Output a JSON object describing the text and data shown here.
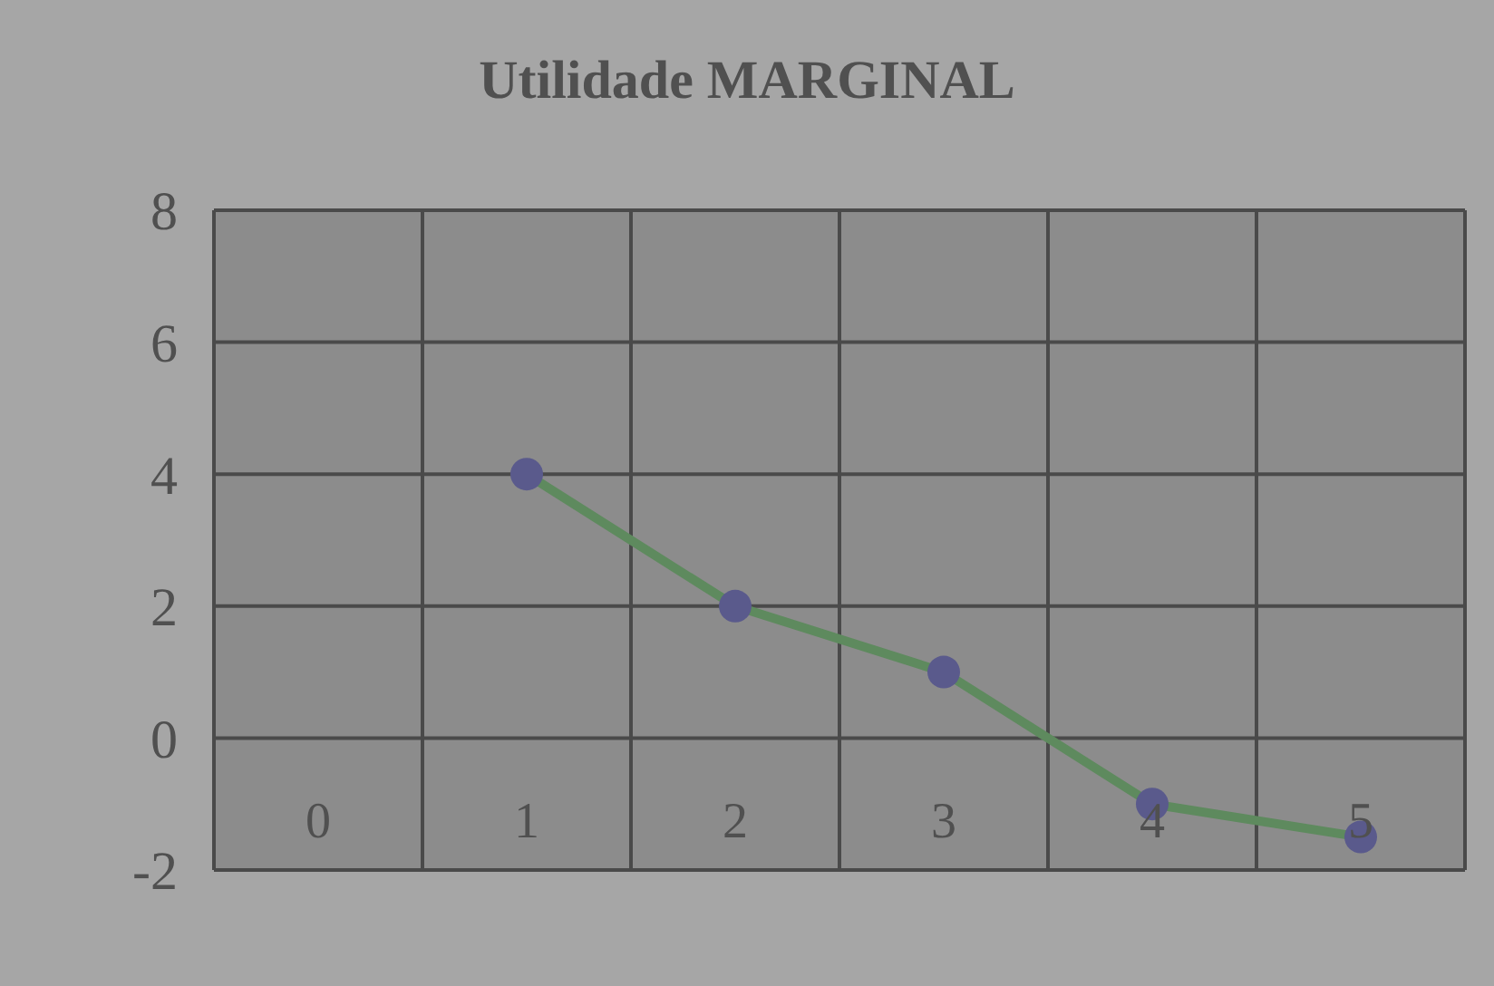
{
  "chart_data": {
    "type": "line",
    "title": "Utilidade MARGINAL",
    "categories": [
      "0",
      "1",
      "2",
      "3",
      "4",
      "5"
    ],
    "series": [
      {
        "color": "#5e8a5e",
        "values": [
          null,
          4,
          2,
          1,
          -1,
          -1.5
        ],
        "colors": [
          null,
          "#5a5a8c",
          "#5a5a8c",
          "#5a5a8c",
          "#5a5a8c",
          "#5a5a8c"
        ]
      }
    ],
    "ylim": [
      -2,
      8
    ],
    "yticks": [
      -2,
      0,
      2,
      4,
      6,
      8
    ],
    "grid": true,
    "marker": "circle",
    "line_style": "solid"
  }
}
